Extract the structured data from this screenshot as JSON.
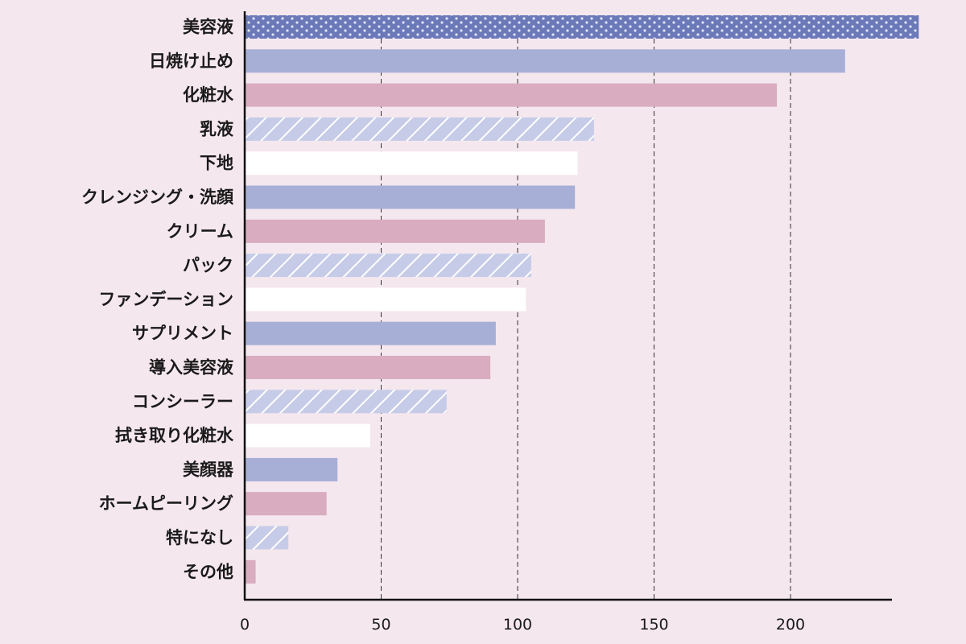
{
  "chart_data": {
    "type": "bar",
    "orientation": "horizontal",
    "title": "",
    "xlabel": "",
    "ylabel": "",
    "xlim": [
      0,
      237
    ],
    "xticks": [
      0,
      50,
      100,
      150,
      200
    ],
    "grid": "vertical dashed",
    "categories": [
      "美容液",
      "日焼け止め",
      "化粧水",
      "乳液",
      "下地",
      "クレンジング・洗顔",
      "クリーム",
      "パック",
      "ファンデーション",
      "サプリメント",
      "導入美容液",
      "コンシーラー",
      "拭き取り化粧水",
      "美顔器",
      "ホームピーリング",
      "特になし",
      "その他"
    ],
    "values": [
      247,
      220,
      195,
      128,
      122,
      121,
      110,
      105,
      103,
      92,
      90,
      74,
      46,
      34,
      30,
      16,
      4
    ],
    "styles": [
      "dots",
      "blue",
      "pink",
      "hatch",
      "white",
      "blue",
      "pink",
      "hatch",
      "white",
      "blue",
      "pink",
      "hatch",
      "white",
      "blue",
      "pink",
      "hatch",
      "pink"
    ],
    "colors": {
      "dots": "#6b79b9",
      "blue": "#a7afd7",
      "pink": "#d9acbf",
      "hatch": "#c6cbe7",
      "white": "#ffffff",
      "background": "#f5e7ee"
    }
  }
}
